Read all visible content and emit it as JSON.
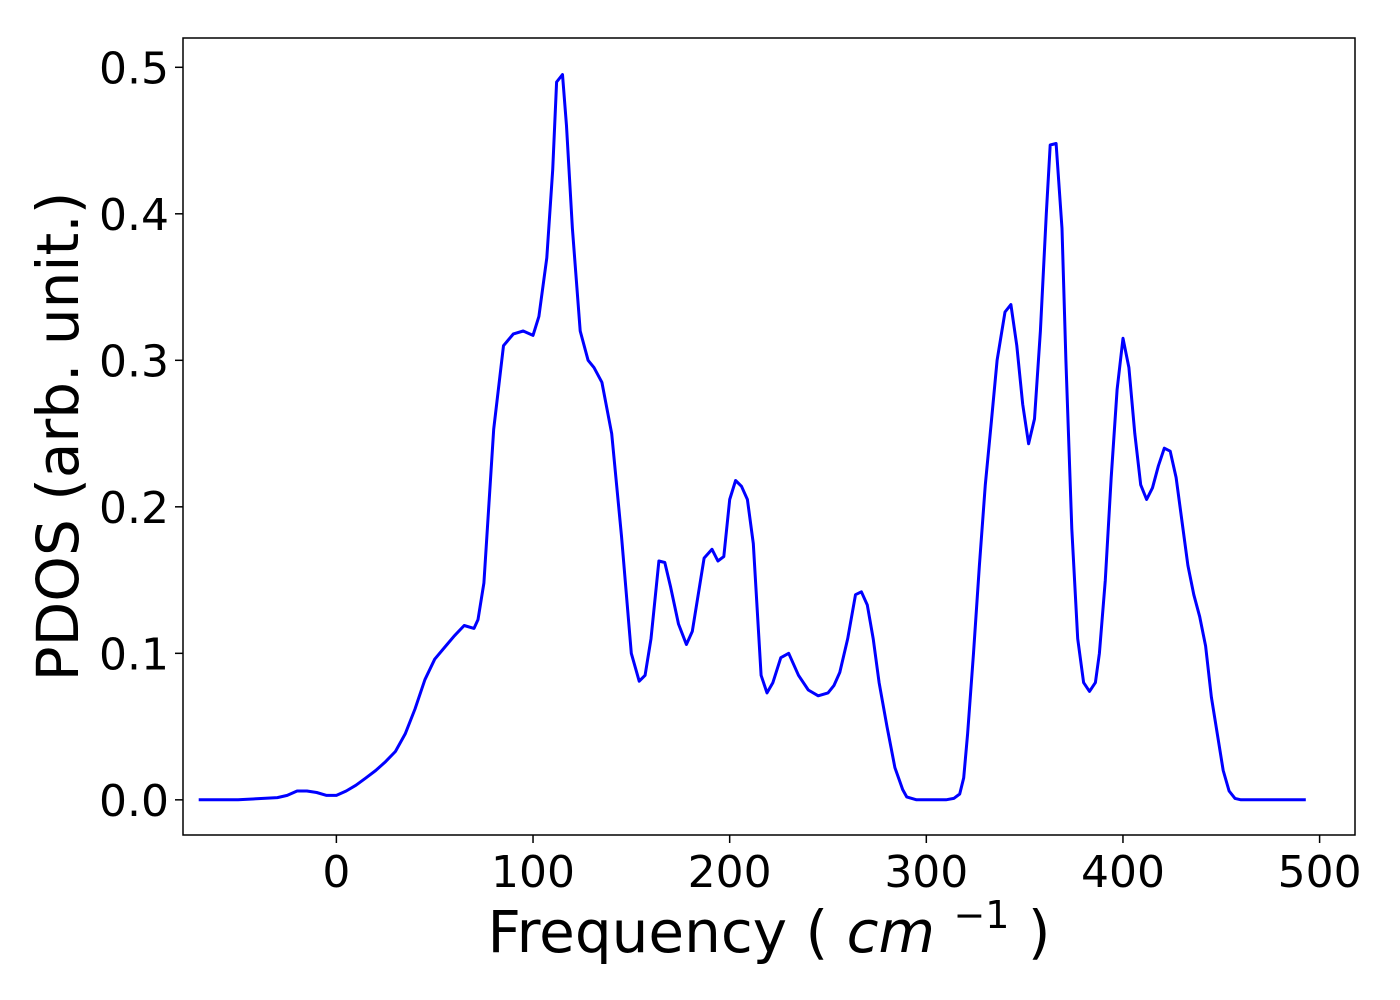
{
  "chart_data": {
    "type": "line",
    "title": "",
    "xlabel": "Frequency",
    "xlabel_unit_base": "cm",
    "xlabel_unit_exp": "−1",
    "ylabel": "PDOS (arb. unit.)",
    "xlim": [
      -78,
      518
    ],
    "ylim": [
      -0.024,
      0.52
    ],
    "xticks": [
      "0",
      "100",
      "200",
      "300",
      "400",
      "500"
    ],
    "xtick_values": [
      0,
      100,
      200,
      300,
      400,
      500
    ],
    "yticks": [
      "0.0",
      "0.1",
      "0.2",
      "0.3",
      "0.4",
      "0.5"
    ],
    "ytick_values": [
      0,
      0.1,
      0.2,
      0.3,
      0.4,
      0.5
    ],
    "grid": false,
    "series": [
      {
        "color": "#0000ff",
        "x": [
          -70,
          -50,
          -30,
          -25,
          -20,
          -15,
          -10,
          -5,
          0,
          5,
          10,
          15,
          20,
          25,
          30,
          35,
          40,
          45,
          50,
          55,
          60,
          65,
          70,
          72,
          75,
          80,
          85,
          90,
          95,
          100,
          103,
          107,
          110,
          112,
          115,
          117,
          120,
          124,
          128,
          131,
          135,
          140,
          145,
          150,
          154,
          157,
          160,
          164,
          167,
          170,
          174,
          178,
          181,
          184,
          187,
          191,
          194,
          197,
          200,
          203,
          206,
          209,
          212,
          216,
          219,
          222,
          226,
          230,
          235,
          240,
          245,
          250,
          253,
          256,
          260,
          264,
          267,
          270,
          273,
          276,
          280,
          284,
          288,
          290,
          295,
          300,
          310,
          314,
          317,
          319,
          321,
          324,
          327,
          330,
          333,
          336,
          340,
          343,
          346,
          349,
          352,
          355,
          358,
          361,
          363,
          366,
          369,
          371,
          374,
          377,
          380,
          383,
          386,
          388,
          391,
          394,
          397,
          400,
          403,
          406,
          409,
          412,
          415,
          418,
          421,
          424,
          427,
          430,
          433,
          436,
          439,
          442,
          445,
          448,
          451,
          454,
          457,
          460,
          465,
          470,
          480,
          490,
          493
        ],
        "y": [
          0.0,
          0.0,
          0.0015,
          0.003,
          0.006,
          0.006,
          0.005,
          0.003,
          0.003,
          0.006,
          0.01,
          0.015,
          0.02,
          0.026,
          0.033,
          0.045,
          0.062,
          0.082,
          0.096,
          0.104,
          0.112,
          0.119,
          0.117,
          0.123,
          0.148,
          0.253,
          0.31,
          0.318,
          0.32,
          0.317,
          0.33,
          0.37,
          0.43,
          0.49,
          0.495,
          0.46,
          0.39,
          0.32,
          0.3,
          0.295,
          0.285,
          0.25,
          0.18,
          0.1,
          0.081,
          0.085,
          0.11,
          0.163,
          0.162,
          0.145,
          0.12,
          0.106,
          0.115,
          0.14,
          0.165,
          0.171,
          0.163,
          0.166,
          0.205,
          0.218,
          0.214,
          0.205,
          0.175,
          0.085,
          0.073,
          0.08,
          0.097,
          0.1,
          0.085,
          0.075,
          0.071,
          0.073,
          0.078,
          0.087,
          0.11,
          0.14,
          0.142,
          0.133,
          0.11,
          0.08,
          0.05,
          0.022,
          0.007,
          0.002,
          0.0,
          0.0,
          0.0,
          0.001,
          0.004,
          0.015,
          0.045,
          0.1,
          0.16,
          0.215,
          0.257,
          0.3,
          0.333,
          0.338,
          0.31,
          0.27,
          0.243,
          0.26,
          0.32,
          0.4,
          0.447,
          0.448,
          0.39,
          0.3,
          0.185,
          0.11,
          0.08,
          0.074,
          0.08,
          0.1,
          0.15,
          0.22,
          0.28,
          0.315,
          0.295,
          0.25,
          0.215,
          0.205,
          0.213,
          0.228,
          0.24,
          0.238,
          0.22,
          0.19,
          0.16,
          0.14,
          0.125,
          0.105,
          0.07,
          0.045,
          0.02,
          0.006,
          0.001,
          0.0,
          0.0,
          0.0,
          0.0,
          0.0,
          0.0
        ]
      }
    ]
  }
}
